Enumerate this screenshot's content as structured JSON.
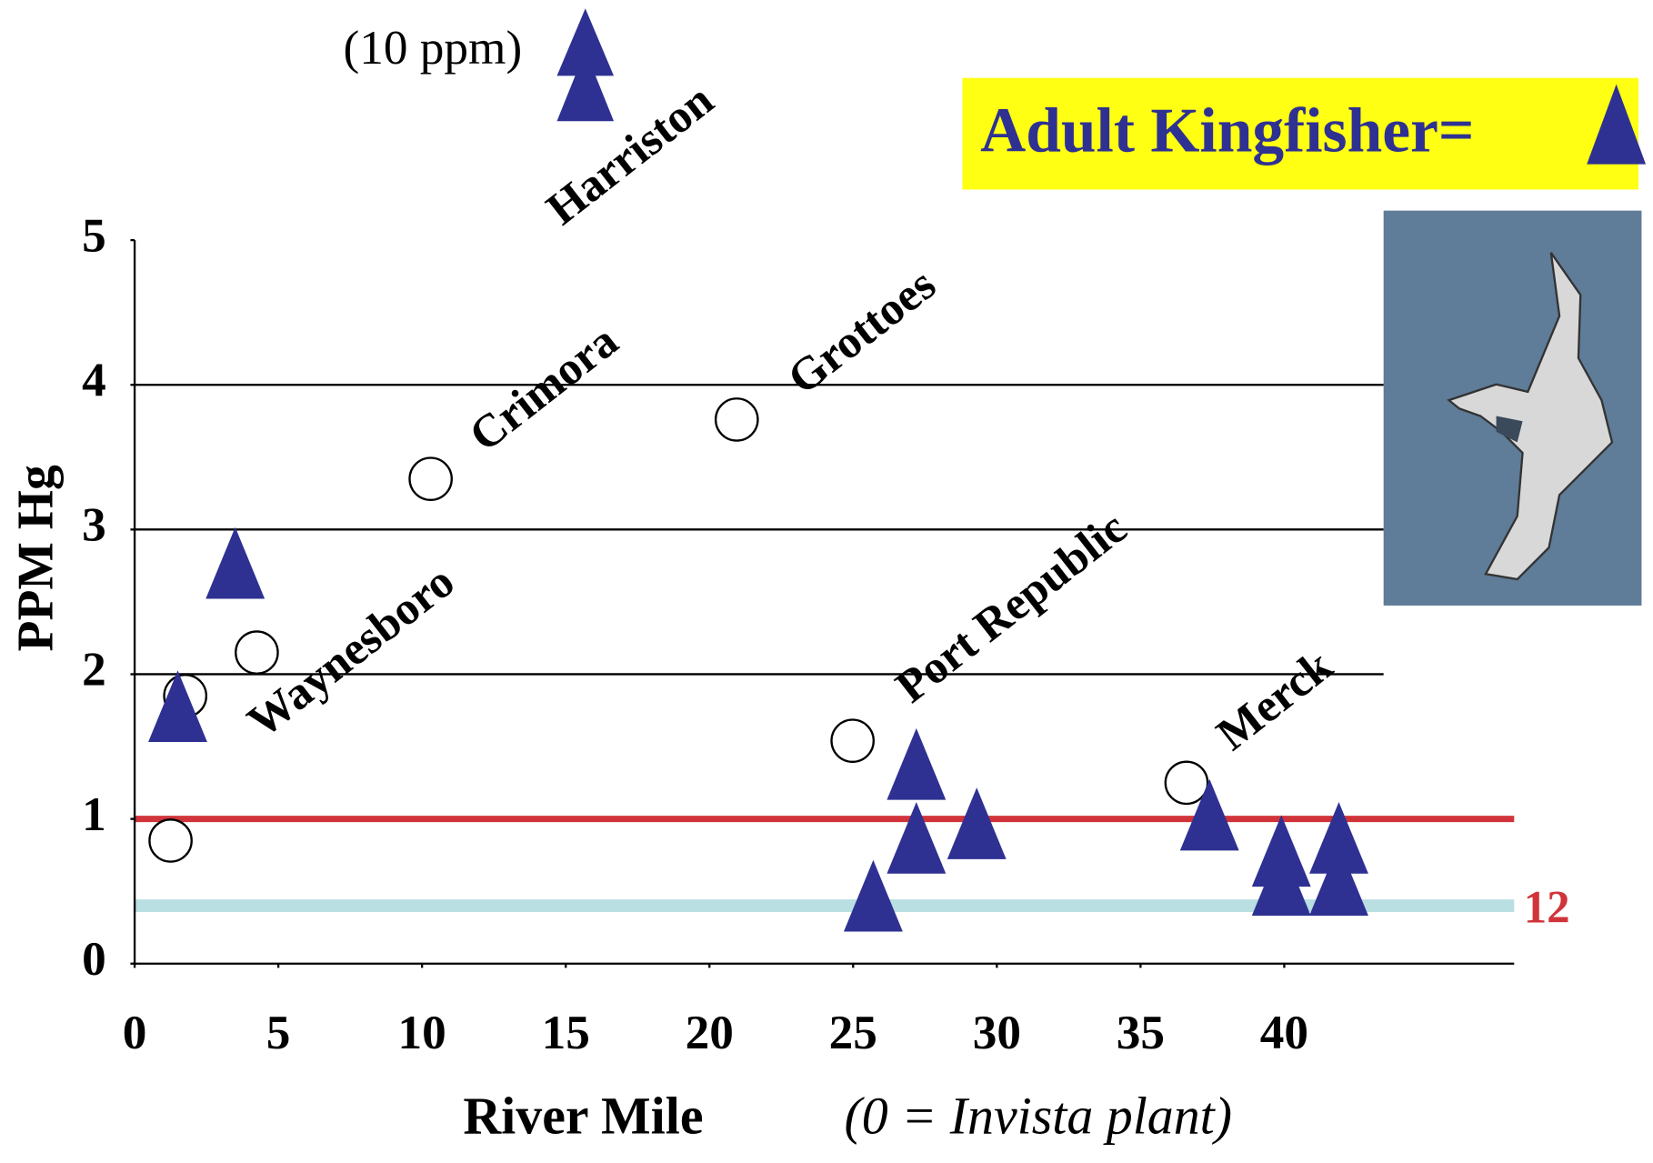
{
  "chart_data": {
    "type": "scatter",
    "ylabel": "PPM  Hg",
    "xlabel": "River Mile",
    "xlabel_note": "(0 = Invista plant)",
    "legend_label": "Adult Kingfisher=",
    "offscale_label": "(10 ppm)",
    "line_label": "12",
    "xlim": [
      0,
      48
    ],
    "ylim": [
      0,
      5
    ],
    "xticks": [
      0,
      5,
      10,
      15,
      20,
      25,
      30,
      35,
      40
    ],
    "yticks": [
      0,
      1,
      2,
      3,
      4,
      5
    ],
    "gridlines": [
      2,
      3,
      4
    ],
    "reference_lines": [
      {
        "value": 1,
        "color": "#d0343a"
      },
      {
        "value": 0.4,
        "color": "#b9dfe2"
      }
    ],
    "site_labels": [
      "Harriston",
      "Grottoes",
      "Crimora",
      "Waynesboro",
      "Port Republic",
      "Merck"
    ],
    "series": [
      {
        "marker": "circle",
        "color": "#000000",
        "x": [
          1.25,
          1.76,
          4.25,
          10.3,
          20.95,
          24.98,
          36.6
        ],
        "values": [
          0.85,
          1.85,
          2.15,
          3.35,
          3.76,
          1.54,
          1.25
        ]
      },
      {
        "marker": "triangle",
        "color": "#2e3192",
        "x": [
          1.5,
          3.5,
          27.2,
          27.2,
          29.3,
          25.7,
          37.4,
          39.9,
          39.9,
          41.9,
          41.9
        ],
        "values": [
          1.75,
          2.74,
          1.35,
          0.84,
          0.94,
          0.44,
          1.0,
          0.75,
          0.55,
          0.84,
          0.55
        ]
      }
    ]
  }
}
